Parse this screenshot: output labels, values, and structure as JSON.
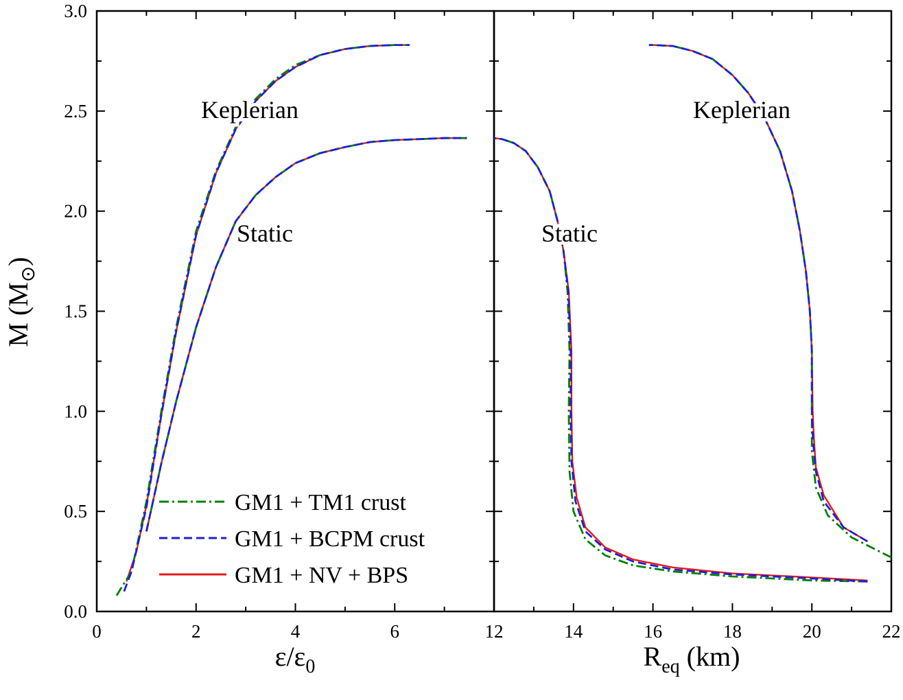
{
  "chart_data": {
    "type": "line",
    "colors": {
      "GM1 + TM1 crust": "#008000",
      "GM1 + BCPM crust": "#1f1fd6",
      "GM1 + NV + BPS": "#e41a1c"
    },
    "legend": {
      "placement": "bottom-left of left panel",
      "entries": [
        "GM1 + TM1 crust",
        "GM1 + BCPM crust",
        "GM1 + NV + BPS"
      ]
    },
    "ylabel": "M (M⊙)",
    "ylabel_main": "M (M",
    "ylabel_sub": "⊙",
    "ylabel_close": ")",
    "ylim": [
      0,
      3.0
    ],
    "yticks": [
      "0.0",
      "0.5",
      "1.0",
      "1.5",
      "2.0",
      "2.5",
      "3.0"
    ],
    "panels": [
      {
        "id": "left",
        "xlabel": "ε/ε0",
        "xlabel_main": "ε/ε",
        "xlabel_sub": "0",
        "xlim": [
          0,
          8
        ],
        "xticks": [
          "0",
          "2",
          "4",
          "6"
        ],
        "annotations": [
          "Keplerian",
          "Static"
        ],
        "series": [
          {
            "name": "GM1 + TM1 crust",
            "curve": "Keplerian",
            "x": [
              0.4,
              0.7,
              1.0,
              1.3,
              1.6,
              2.0,
              2.4,
              2.8,
              3.2,
              3.6,
              4.0,
              4.5,
              5.0,
              5.5,
              6.0,
              6.3
            ],
            "y": [
              0.08,
              0.2,
              0.55,
              1.0,
              1.42,
              1.9,
              2.2,
              2.42,
              2.56,
              2.66,
              2.73,
              2.78,
              2.81,
              2.825,
              2.83,
              2.83
            ]
          },
          {
            "name": "GM1 + BCPM crust",
            "curve": "Keplerian",
            "x": [
              0.55,
              0.7,
              1.0,
              1.3,
              1.6,
              2.0,
              2.4,
              2.8,
              3.2,
              3.6,
              4.0,
              4.5,
              5.0,
              5.5,
              6.0,
              6.3
            ],
            "y": [
              0.1,
              0.2,
              0.52,
              0.98,
              1.4,
              1.88,
              2.19,
              2.41,
              2.55,
              2.65,
              2.72,
              2.78,
              2.81,
              2.825,
              2.83,
              2.83
            ]
          },
          {
            "name": "GM1 + NV + BPS",
            "curve": "Keplerian",
            "x": [
              0.6,
              0.8,
              1.0,
              1.3,
              1.6,
              2.0,
              2.4,
              2.8,
              3.2,
              3.6,
              4.0,
              4.5,
              5.0,
              5.5,
              6.0,
              6.3
            ],
            "y": [
              0.15,
              0.3,
              0.53,
              0.98,
              1.4,
              1.88,
              2.19,
              2.41,
              2.55,
              2.65,
              2.72,
              2.78,
              2.81,
              2.825,
              2.83,
              2.83
            ]
          },
          {
            "name": "GM1 + TM1 crust",
            "curve": "Static",
            "x": [
              1.0,
              1.3,
              1.6,
              2.0,
              2.4,
              2.8,
              3.2,
              3.6,
              4.0,
              4.5,
              5.0,
              5.5,
              6.0,
              6.5,
              7.0,
              7.45
            ],
            "y": [
              0.4,
              0.74,
              1.05,
              1.42,
              1.72,
              1.95,
              2.08,
              2.17,
              2.24,
              2.29,
              2.32,
              2.345,
              2.355,
              2.36,
              2.365,
              2.365
            ]
          },
          {
            "name": "GM1 + BCPM crust",
            "curve": "Static",
            "x": [
              1.0,
              1.3,
              1.6,
              2.0,
              2.4,
              2.8,
              3.2,
              3.6,
              4.0,
              4.5,
              5.0,
              5.5,
              6.0,
              6.5,
              7.0,
              7.45
            ],
            "y": [
              0.4,
              0.74,
              1.05,
              1.42,
              1.72,
              1.95,
              2.08,
              2.17,
              2.24,
              2.29,
              2.32,
              2.345,
              2.355,
              2.36,
              2.365,
              2.365
            ]
          },
          {
            "name": "GM1 + NV + BPS",
            "curve": "Static",
            "x": [
              1.0,
              1.3,
              1.6,
              2.0,
              2.4,
              2.8,
              3.2,
              3.6,
              4.0,
              4.5,
              5.0,
              5.5,
              6.0,
              6.5,
              7.0,
              7.45
            ],
            "y": [
              0.4,
              0.74,
              1.05,
              1.42,
              1.72,
              1.95,
              2.08,
              2.17,
              2.24,
              2.29,
              2.32,
              2.345,
              2.355,
              2.36,
              2.365,
              2.365
            ]
          }
        ]
      },
      {
        "id": "right",
        "xlabel": "Req (km)",
        "xlabel_main": "R",
        "xlabel_sub": "eq",
        "xlabel_rest": " (km)",
        "xlim": [
          12,
          22
        ],
        "xticks": [
          "12",
          "14",
          "16",
          "18",
          "20",
          "22"
        ],
        "annotations": [
          "Static",
          "Keplerian"
        ],
        "series": [
          {
            "name": "GM1 + TM1 crust",
            "curve": "Static",
            "x": [
              21.4,
              20.0,
              18.0,
              16.5,
              15.5,
              14.8,
              14.3,
              14.0,
              13.9,
              13.88,
              13.9,
              13.85,
              13.75,
              13.6,
              13.4,
              13.1,
              12.8,
              12.5,
              12.2,
              12.0
            ],
            "y": [
              0.15,
              0.155,
              0.175,
              0.2,
              0.23,
              0.28,
              0.36,
              0.5,
              0.7,
              1.0,
              1.3,
              1.6,
              1.8,
              1.95,
              2.1,
              2.22,
              2.3,
              2.34,
              2.36,
              2.365
            ]
          },
          {
            "name": "GM1 + BCPM crust",
            "curve": "Static",
            "x": [
              21.4,
              20.0,
              18.0,
              16.5,
              15.5,
              14.8,
              14.3,
              14.05,
              13.95,
              13.93,
              13.93,
              13.87,
              13.75,
              13.6,
              13.4,
              13.1,
              12.8,
              12.5,
              12.2,
              12.0
            ],
            "y": [
              0.15,
              0.165,
              0.185,
              0.21,
              0.25,
              0.31,
              0.4,
              0.55,
              0.75,
              1.0,
              1.3,
              1.6,
              1.8,
              1.95,
              2.1,
              2.22,
              2.3,
              2.34,
              2.36,
              2.365
            ]
          },
          {
            "name": "GM1 + NV + BPS",
            "curve": "Static",
            "x": [
              21.4,
              20.0,
              18.0,
              16.5,
              15.5,
              14.8,
              14.3,
              14.08,
              13.97,
              13.95,
              13.95,
              13.88,
              13.75,
              13.6,
              13.4,
              13.1,
              12.8,
              12.5,
              12.2,
              12.0
            ],
            "y": [
              0.155,
              0.17,
              0.19,
              0.22,
              0.26,
              0.32,
              0.42,
              0.57,
              0.75,
              1.0,
              1.3,
              1.6,
              1.8,
              1.95,
              2.1,
              2.22,
              2.3,
              2.34,
              2.36,
              2.365
            ]
          },
          {
            "name": "GM1 + TM1 crust",
            "curve": "Keplerian",
            "x": [
              22.0,
              21.0,
              20.4,
              20.1,
              20.0,
              20.0,
              20.0,
              19.95,
              19.85,
              19.7,
              19.5,
              19.2,
              18.8,
              18.4,
              18.0,
              17.5,
              17.0,
              16.5,
              16.0,
              15.9
            ],
            "y": [
              0.27,
              0.37,
              0.48,
              0.62,
              0.8,
              1.0,
              1.3,
              1.5,
              1.7,
              1.9,
              2.1,
              2.3,
              2.47,
              2.59,
              2.68,
              2.76,
              2.8,
              2.825,
              2.83,
              2.83
            ]
          },
          {
            "name": "GM1 + BCPM crust",
            "curve": "Keplerian",
            "x": [
              21.4,
              20.8,
              20.3,
              20.1,
              20.03,
              20.0,
              20.0,
              19.95,
              19.85,
              19.7,
              19.5,
              19.2,
              18.8,
              18.4,
              18.0,
              17.5,
              17.0,
              16.5,
              16.0,
              15.9
            ],
            "y": [
              0.35,
              0.42,
              0.55,
              0.7,
              0.85,
              1.0,
              1.3,
              1.5,
              1.7,
              1.9,
              2.1,
              2.3,
              2.47,
              2.59,
              2.68,
              2.76,
              2.8,
              2.825,
              2.83,
              2.83
            ]
          },
          {
            "name": "GM1 + NV + BPS",
            "curve": "Keplerian",
            "x": [
              21.4,
              20.8,
              20.3,
              20.1,
              20.05,
              20.02,
              20.0,
              19.95,
              19.85,
              19.7,
              19.5,
              19.2,
              18.8,
              18.4,
              18.0,
              17.5,
              17.0,
              16.5,
              16.0,
              15.9
            ],
            "y": [
              0.35,
              0.42,
              0.58,
              0.72,
              0.87,
              1.0,
              1.3,
              1.5,
              1.7,
              1.9,
              2.1,
              2.3,
              2.47,
              2.59,
              2.68,
              2.76,
              2.8,
              2.825,
              2.83,
              2.83
            ]
          }
        ]
      }
    ]
  }
}
